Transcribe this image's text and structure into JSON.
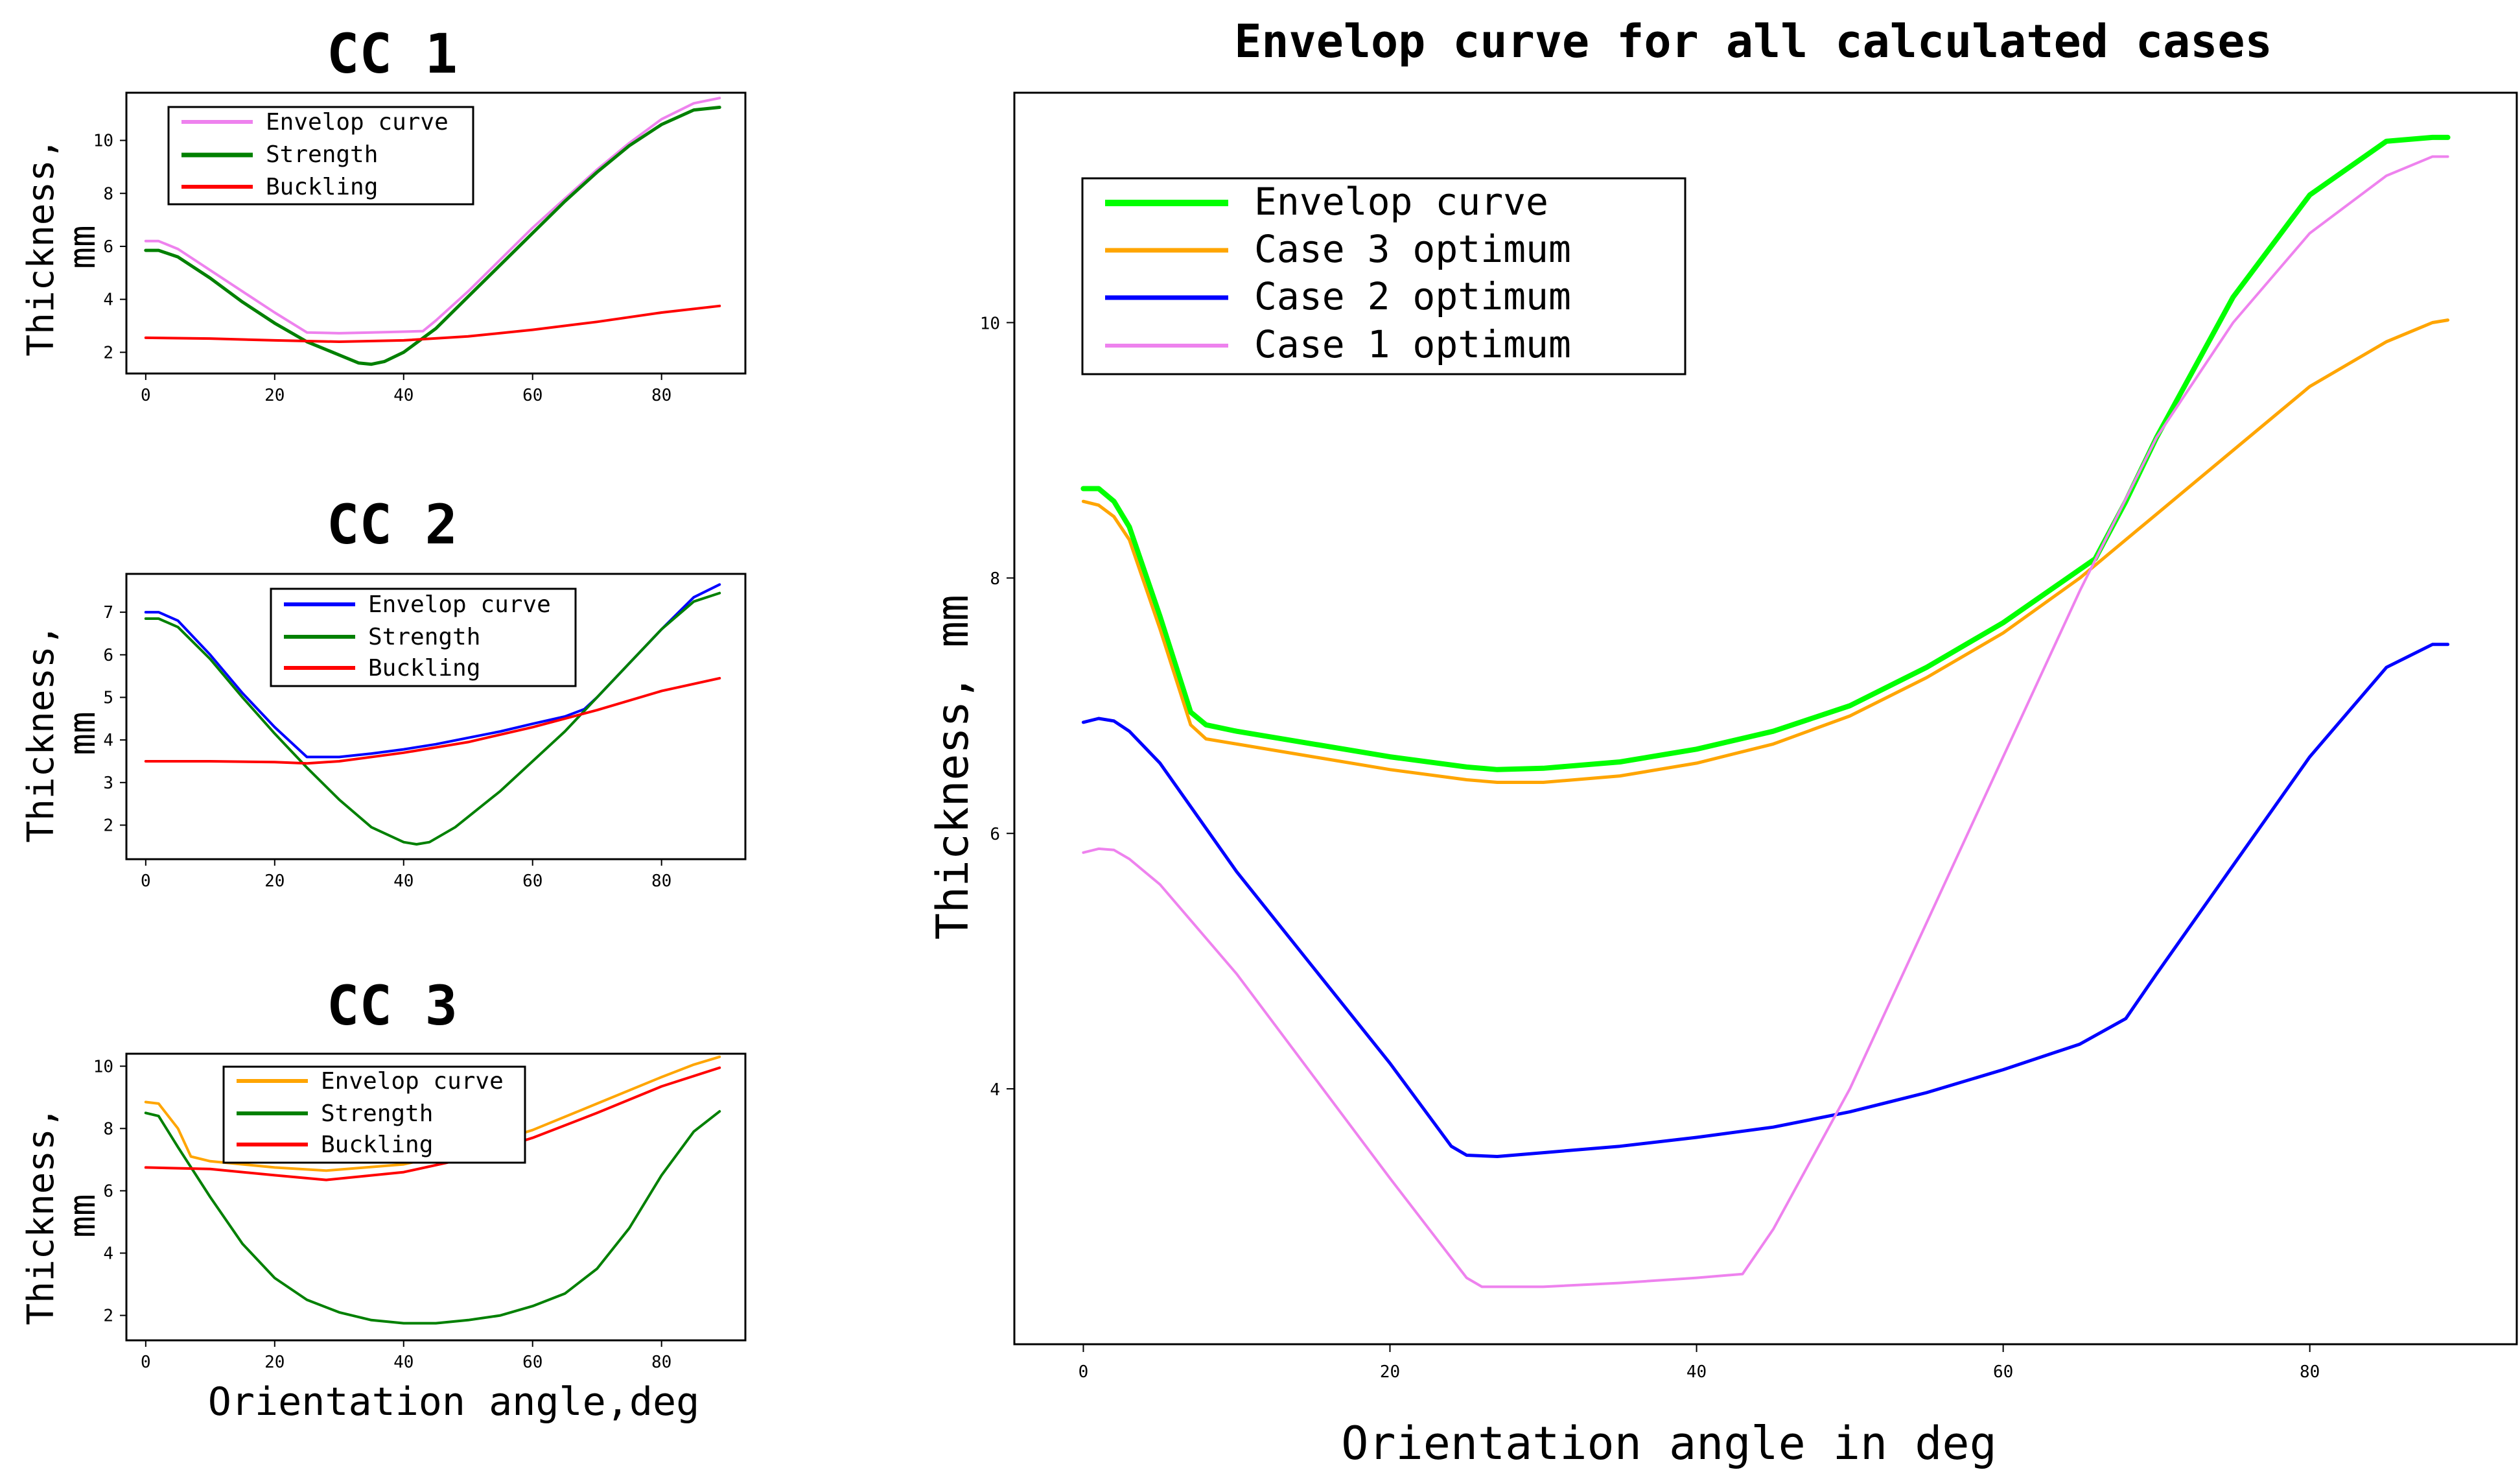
{
  "figure": {
    "xlabel_small": "Orientation angle,deg",
    "ylabel": "Thickness, mm",
    "ylabel_line1": "Thickness,",
    "ylabel_line2": "mm"
  },
  "colors": {
    "pink": "#ee82ee",
    "green": "#008000",
    "red": "#ff0000",
    "blue": "#0000ff",
    "orange": "#ffa500",
    "lime": "#00ff00"
  },
  "chart_data": [
    {
      "id": "cc1",
      "type": "line",
      "title": "CC 1",
      "xlabel": "",
      "ylabel": "Thickness, mm",
      "xlim": [
        -3,
        93
      ],
      "ylim": [
        1.2,
        11.8
      ],
      "xticks": [
        0,
        20,
        40,
        60,
        80
      ],
      "yticks": [
        2,
        4,
        6,
        8,
        10
      ],
      "legend_position": "top-left",
      "series": [
        {
          "name": "Envelop curve",
          "color": "pink",
          "width": 4,
          "x": [
            0,
            2,
            5,
            10,
            15,
            20,
            25,
            30,
            35,
            40,
            43,
            45,
            50,
            55,
            60,
            65,
            70,
            75,
            80,
            85,
            89
          ],
          "y": [
            6.2,
            6.2,
            5.9,
            5.1,
            4.3,
            3.5,
            2.75,
            2.72,
            2.75,
            2.78,
            2.8,
            3.2,
            4.3,
            5.5,
            6.7,
            7.8,
            8.9,
            9.9,
            10.8,
            11.4,
            11.6
          ]
        },
        {
          "name": "Strength",
          "color": "green",
          "width": 5,
          "x": [
            0,
            2,
            5,
            10,
            15,
            20,
            25,
            30,
            33,
            35,
            37,
            40,
            45,
            50,
            55,
            60,
            65,
            70,
            75,
            80,
            85,
            89
          ],
          "y": [
            5.85,
            5.85,
            5.6,
            4.8,
            3.9,
            3.1,
            2.4,
            1.9,
            1.6,
            1.55,
            1.65,
            2.0,
            2.9,
            4.1,
            5.3,
            6.5,
            7.7,
            8.8,
            9.8,
            10.6,
            11.15,
            11.25
          ]
        },
        {
          "name": "Buckling",
          "color": "red",
          "width": 4,
          "x": [
            0,
            10,
            20,
            30,
            40,
            50,
            60,
            70,
            80,
            89
          ],
          "y": [
            2.55,
            2.52,
            2.45,
            2.4,
            2.45,
            2.6,
            2.85,
            3.15,
            3.5,
            3.75
          ]
        }
      ]
    },
    {
      "id": "cc2",
      "type": "line",
      "title": "CC 2",
      "xlabel": "",
      "ylabel": "Thickness, mm",
      "xlim": [
        -3,
        93
      ],
      "ylim": [
        1.2,
        7.9
      ],
      "xticks": [
        0,
        20,
        40,
        60,
        80
      ],
      "yticks": [
        2,
        3,
        4,
        5,
        6,
        7
      ],
      "legend_position": "top-center",
      "series": [
        {
          "name": "Envelop curve",
          "color": "blue",
          "width": 4,
          "x": [
            0,
            2,
            5,
            10,
            15,
            20,
            25,
            30,
            35,
            40,
            45,
            50,
            55,
            60,
            65,
            68,
            70,
            75,
            80,
            85,
            89
          ],
          "y": [
            7.0,
            7.0,
            6.8,
            6.0,
            5.1,
            4.3,
            3.6,
            3.6,
            3.68,
            3.78,
            3.9,
            4.05,
            4.2,
            4.38,
            4.55,
            4.72,
            5.0,
            5.8,
            6.6,
            7.35,
            7.65
          ]
        },
        {
          "name": "Strength",
          "color": "green",
          "width": 4,
          "x": [
            0,
            2,
            5,
            10,
            15,
            20,
            25,
            30,
            35,
            40,
            42,
            44,
            48,
            55,
            60,
            65,
            70,
            75,
            80,
            85,
            89
          ],
          "y": [
            6.85,
            6.85,
            6.65,
            5.9,
            5.0,
            4.15,
            3.35,
            2.6,
            1.95,
            1.6,
            1.55,
            1.6,
            1.95,
            2.8,
            3.5,
            4.2,
            5.0,
            5.8,
            6.6,
            7.25,
            7.45
          ]
        },
        {
          "name": "Buckling",
          "color": "red",
          "width": 4,
          "x": [
            0,
            10,
            20,
            25,
            30,
            40,
            50,
            60,
            70,
            80,
            89
          ],
          "y": [
            3.5,
            3.5,
            3.48,
            3.45,
            3.5,
            3.7,
            3.95,
            4.3,
            4.7,
            5.15,
            5.45
          ]
        }
      ]
    },
    {
      "id": "cc3",
      "type": "line",
      "title": "CC 3",
      "xlabel": "Orientation angle,deg",
      "ylabel": "Thickness, mm",
      "xlim": [
        -3,
        93
      ],
      "ylim": [
        1.2,
        10.4
      ],
      "xticks": [
        0,
        20,
        40,
        60,
        80
      ],
      "yticks": [
        2,
        4,
        6,
        8,
        10
      ],
      "legend_position": "top-center",
      "series": [
        {
          "name": "Envelop curve",
          "color": "orange",
          "width": 4,
          "x": [
            0,
            2,
            5,
            7,
            10,
            20,
            28,
            40,
            50,
            60,
            70,
            80,
            85,
            89
          ],
          "y": [
            8.85,
            8.8,
            8.0,
            7.1,
            6.95,
            6.75,
            6.65,
            6.85,
            7.3,
            7.95,
            8.8,
            9.65,
            10.05,
            10.3
          ]
        },
        {
          "name": "Strength",
          "color": "green",
          "width": 4,
          "x": [
            0,
            2,
            5,
            10,
            15,
            20,
            25,
            30,
            35,
            40,
            45,
            50,
            55,
            60,
            65,
            70,
            75,
            80,
            85,
            89
          ],
          "y": [
            8.5,
            8.4,
            7.4,
            5.8,
            4.3,
            3.2,
            2.5,
            2.1,
            1.85,
            1.75,
            1.75,
            1.85,
            2.0,
            2.3,
            2.7,
            3.5,
            4.8,
            6.5,
            7.9,
            8.55
          ]
        },
        {
          "name": "Buckling",
          "color": "red",
          "width": 4,
          "x": [
            0,
            10,
            20,
            28,
            40,
            50,
            60,
            70,
            80,
            89
          ],
          "y": [
            6.75,
            6.7,
            6.5,
            6.35,
            6.6,
            7.05,
            7.7,
            8.5,
            9.35,
            9.95
          ]
        }
      ]
    },
    {
      "id": "envelope",
      "type": "line",
      "title": "Envelop curve for all calculated cases",
      "xlabel": "Orientation angle in deg",
      "ylabel": "Thickness, mm",
      "xlim": [
        -4.5,
        93.5
      ],
      "ylim": [
        2.0,
        11.8
      ],
      "xticks": [
        0,
        20,
        40,
        60,
        80
      ],
      "yticks": [
        4,
        6,
        8,
        10
      ],
      "legend_position": "top-left",
      "series": [
        {
          "name": "Envelop curve",
          "color": "lime",
          "width": 8,
          "x": [
            0,
            1,
            2,
            3,
            5,
            7,
            8,
            10,
            15,
            20,
            25,
            27,
            30,
            35,
            40,
            45,
            50,
            55,
            60,
            66,
            68,
            70,
            75,
            80,
            85,
            88,
            89
          ],
          "y": [
            8.7,
            8.7,
            8.6,
            8.4,
            7.7,
            6.95,
            6.85,
            6.8,
            6.7,
            6.6,
            6.52,
            6.5,
            6.51,
            6.56,
            6.66,
            6.8,
            7.0,
            7.3,
            7.65,
            8.15,
            8.6,
            9.1,
            10.2,
            11.0,
            11.42,
            11.45,
            11.45
          ]
        },
        {
          "name": "Case 3 optimum",
          "color": "orange",
          "width": 5,
          "x": [
            0,
            1,
            2,
            3,
            5,
            7,
            8,
            10,
            15,
            20,
            25,
            27,
            30,
            35,
            40,
            45,
            50,
            55,
            60,
            65,
            70,
            75,
            80,
            85,
            88,
            89
          ],
          "y": [
            8.6,
            8.57,
            8.48,
            8.3,
            7.6,
            6.85,
            6.74,
            6.7,
            6.6,
            6.5,
            6.42,
            6.4,
            6.4,
            6.45,
            6.55,
            6.7,
            6.92,
            7.22,
            7.57,
            8.0,
            8.5,
            9.0,
            9.5,
            9.85,
            10.0,
            10.02
          ]
        },
        {
          "name": "Case 2 optimum",
          "color": "blue",
          "width": 5,
          "x": [
            0,
            1,
            2,
            3,
            5,
            10,
            15,
            20,
            24,
            25,
            27,
            30,
            35,
            40,
            45,
            50,
            55,
            60,
            65,
            68,
            70,
            75,
            80,
            85,
            88,
            89
          ],
          "y": [
            6.87,
            6.9,
            6.88,
            6.8,
            6.55,
            5.7,
            4.95,
            4.2,
            3.55,
            3.48,
            3.47,
            3.5,
            3.55,
            3.62,
            3.7,
            3.82,
            3.97,
            4.15,
            4.35,
            4.55,
            4.9,
            5.75,
            6.6,
            7.3,
            7.48,
            7.48
          ]
        },
        {
          "name": "Case 1 optimum",
          "color": "pink",
          "width": 4,
          "x": [
            0,
            1,
            2,
            3,
            5,
            10,
            15,
            20,
            25,
            26,
            28,
            30,
            35,
            40,
            43,
            45,
            50,
            55,
            60,
            65,
            70,
            75,
            80,
            85,
            88,
            89
          ],
          "y": [
            5.85,
            5.88,
            5.87,
            5.8,
            5.6,
            4.9,
            4.1,
            3.3,
            2.52,
            2.45,
            2.45,
            2.45,
            2.48,
            2.52,
            2.55,
            2.9,
            4.0,
            5.3,
            6.6,
            7.9,
            9.1,
            10.0,
            10.7,
            11.15,
            11.3,
            11.3
          ]
        }
      ]
    }
  ]
}
